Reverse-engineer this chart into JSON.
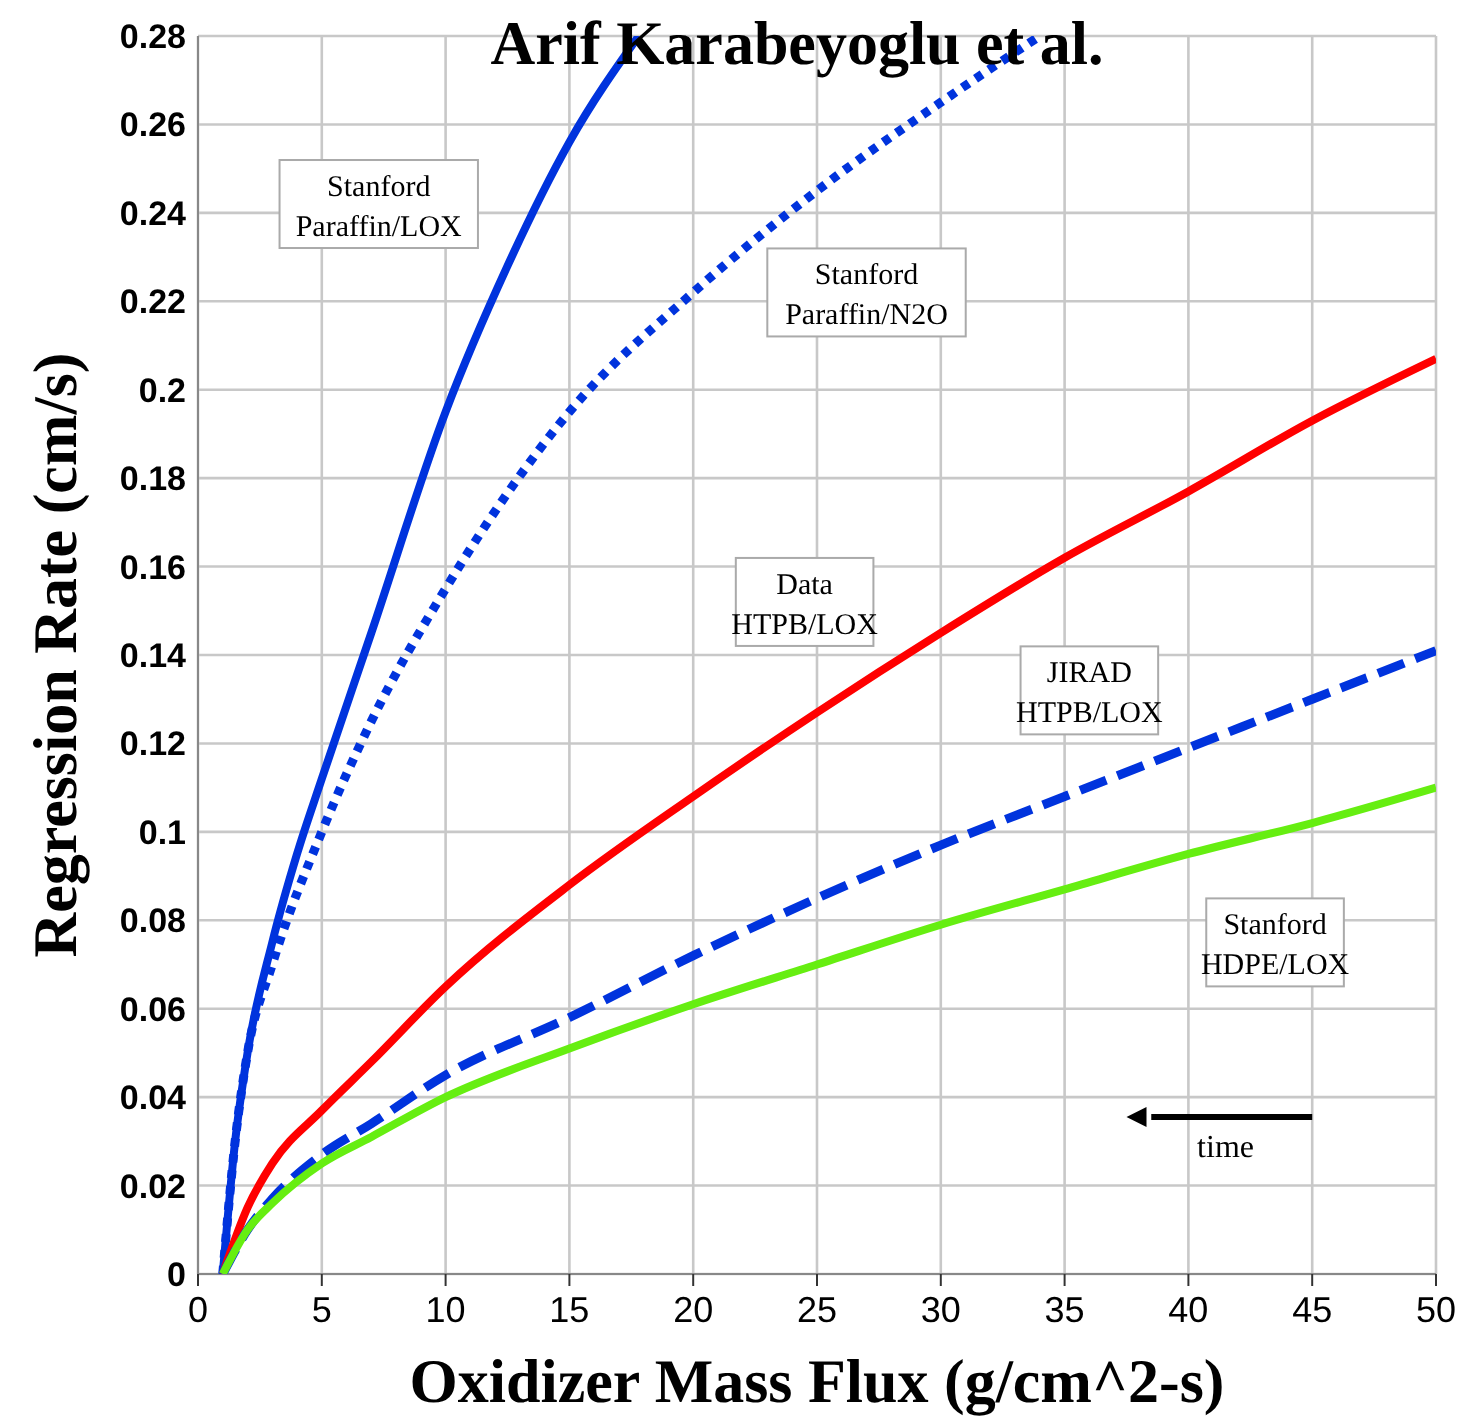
{
  "chart_data": {
    "type": "line",
    "title": "Arif Karabeyoglu et al.",
    "xlabel": "Oxidizer Mass Flux (g/cm^2-s)",
    "ylabel": "Regression Rate (cm/s)",
    "xlim": [
      0,
      50
    ],
    "ylim": [
      0,
      0.28
    ],
    "xticks": [
      0,
      5,
      10,
      15,
      20,
      25,
      30,
      35,
      40,
      45,
      50
    ],
    "yticks": [
      0,
      0.02,
      0.04,
      0.06,
      0.08,
      0.1,
      0.12,
      0.14,
      0.16,
      0.18,
      0.2,
      0.22,
      0.24,
      0.26,
      0.28
    ],
    "grid": true,
    "legend": false,
    "annotations": [
      "time"
    ],
    "series": [
      {
        "name": "Stanford\nParaffin/LOX",
        "color": "#0033dd",
        "line_style": "solid",
        "x": [
          1,
          1.5,
          2,
          3,
          4,
          5,
          7,
          10,
          12.5,
          15,
          17.8
        ],
        "values": [
          0,
          0.03,
          0.05,
          0.075,
          0.095,
          0.112,
          0.145,
          0.195,
          0.228,
          0.256,
          0.28
        ]
      },
      {
        "name": "Stanford\nParaffin/N2O",
        "color": "#0033dd",
        "line_style": "dotted",
        "x": [
          1,
          1.5,
          2,
          3,
          5,
          7,
          10,
          15,
          20,
          25,
          30,
          34
        ],
        "values": [
          0,
          0.03,
          0.05,
          0.07,
          0.1,
          0.125,
          0.155,
          0.195,
          0.222,
          0.245,
          0.265,
          0.28
        ]
      },
      {
        "name": "Data\nHTPB/LOX",
        "color": "#ff0000",
        "line_style": "solid",
        "x": [
          1,
          2,
          3,
          5,
          7,
          10,
          15,
          20,
          25,
          30,
          35,
          40,
          45,
          50
        ],
        "values": [
          0,
          0.015,
          0.025,
          0.037,
          0.048,
          0.065,
          0.088,
          0.108,
          0.127,
          0.145,
          0.162,
          0.177,
          0.193,
          0.207
        ]
      },
      {
        "name": "JIRAD\nHTPB/LOX",
        "color": "#0033dd",
        "line_style": "dashed",
        "x": [
          1,
          2,
          3,
          5,
          7,
          10,
          15,
          20,
          25,
          30,
          35,
          40,
          45,
          50
        ],
        "values": [
          0,
          0.01,
          0.017,
          0.027,
          0.034,
          0.045,
          0.058,
          0.072,
          0.085,
          0.097,
          0.108,
          0.119,
          0.13,
          0.141
        ]
      },
      {
        "name": "Stanford\nHDPE/LOX",
        "color": "#66ee11",
        "line_style": "solid",
        "x": [
          1,
          2,
          3,
          5,
          7,
          10,
          15,
          20,
          25,
          30,
          35,
          40,
          45,
          50
        ],
        "values": [
          0,
          0.01,
          0.016,
          0.025,
          0.031,
          0.04,
          0.051,
          0.061,
          0.07,
          0.079,
          0.087,
          0.095,
          0.102,
          0.11
        ]
      }
    ]
  }
}
